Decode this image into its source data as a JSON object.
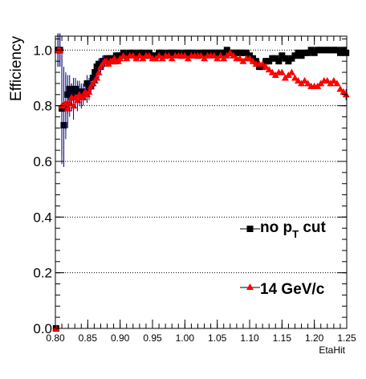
{
  "chart_data": {
    "type": "scatter",
    "title": "",
    "xlabel": "EtaHit",
    "ylabel": "Efficiency",
    "xlim": [
      0.8,
      1.25
    ],
    "ylim": [
      0.0,
      1.05
    ],
    "grid": "horizontal dotted at y ticks",
    "x_ticks": [
      "0.80",
      "0.85",
      "0.90",
      "0.95",
      "1.00",
      "1.05",
      "1.10",
      "1.15",
      "1.20",
      "1.25"
    ],
    "y_ticks": [
      "0.0",
      "0.2",
      "0.4",
      "0.6",
      "0.8",
      "1.0"
    ],
    "legend_position": "bottom-right",
    "legend": [
      {
        "name_main": "no p",
        "name_sub": "T",
        "name_end": " cut",
        "color": "#000000",
        "marker": "square"
      },
      {
        "name_main": "14 GeV/c",
        "color": "#ff0000",
        "marker": "triangle"
      }
    ],
    "series": [
      {
        "color": "#000000",
        "marker": "square",
        "error_color": "#00007a",
        "x": [
          0.801,
          0.804,
          0.807,
          0.81,
          0.813,
          0.816,
          0.819,
          0.822,
          0.825,
          0.828,
          0.831,
          0.834,
          0.837,
          0.84,
          0.843,
          0.846,
          0.849,
          0.852,
          0.855,
          0.858,
          0.861,
          0.864,
          0.867,
          0.87,
          0.873,
          0.876,
          0.879,
          0.882,
          0.885,
          0.888,
          0.891,
          0.894,
          0.897,
          0.9,
          0.905,
          0.91,
          0.915,
          0.92,
          0.925,
          0.93,
          0.935,
          0.94,
          0.945,
          0.95,
          0.955,
          0.96,
          0.965,
          0.97,
          0.975,
          0.98,
          0.985,
          0.99,
          0.995,
          1.0,
          1.005,
          1.01,
          1.015,
          1.02,
          1.025,
          1.03,
          1.035,
          1.04,
          1.045,
          1.05,
          1.055,
          1.06,
          1.065,
          1.07,
          1.075,
          1.08,
          1.085,
          1.09,
          1.095,
          1.1,
          1.105,
          1.11,
          1.115,
          1.12,
          1.125,
          1.13,
          1.135,
          1.14,
          1.145,
          1.15,
          1.155,
          1.16,
          1.165,
          1.17,
          1.175,
          1.18,
          1.185,
          1.19,
          1.195,
          1.2,
          1.205,
          1.21,
          1.215,
          1.22,
          1.225,
          1.23,
          1.235,
          1.24,
          1.245,
          1.249
        ],
        "y": [
          0.0,
          1.0,
          1.0,
          0.79,
          0.73,
          0.8,
          0.84,
          0.86,
          0.83,
          0.85,
          0.86,
          0.85,
          0.85,
          0.84,
          0.85,
          0.85,
          0.88,
          0.87,
          0.87,
          0.9,
          0.92,
          0.94,
          0.95,
          0.94,
          0.96,
          0.96,
          0.97,
          0.96,
          0.97,
          0.97,
          0.96,
          0.98,
          0.97,
          0.98,
          0.99,
          0.98,
          0.99,
          0.99,
          0.98,
          0.99,
          0.99,
          0.98,
          0.99,
          0.98,
          0.98,
          0.99,
          0.99,
          0.98,
          0.99,
          0.99,
          0.99,
          0.99,
          0.98,
          0.99,
          0.99,
          0.99,
          0.99,
          0.98,
          0.99,
          0.99,
          0.99,
          0.99,
          0.99,
          0.99,
          0.99,
          0.99,
          1.0,
          0.99,
          0.99,
          0.99,
          0.99,
          0.99,
          0.99,
          0.98,
          0.97,
          0.96,
          0.94,
          0.94,
          0.96,
          0.96,
          0.97,
          0.97,
          0.96,
          0.98,
          0.97,
          0.96,
          0.97,
          0.98,
          0.99,
          0.98,
          0.99,
          0.99,
          1.0,
          0.99,
          1.0,
          1.0,
          1.0,
          1.0,
          1.0,
          1.0,
          1.0,
          0.99,
          1.0,
          0.99
        ],
        "err": [
          0.0,
          0.06,
          0.06,
          0.2,
          0.15,
          0.12,
          0.07,
          0.05,
          0.05,
          0.05,
          0.04,
          0.04,
          0.04,
          0.04,
          0.03,
          0.03,
          0.03,
          0.03,
          0.02,
          0.02,
          0.02,
          0.02,
          0.02,
          0.02,
          0.02,
          0.02,
          0.01,
          0.01,
          0.01,
          0.01,
          0.01,
          0.01,
          0.01,
          0.01,
          0.01,
          0.01,
          0.01,
          0.01,
          0.01,
          0.01,
          0.01,
          0.01,
          0.01,
          0.01,
          0.01,
          0.01,
          0.01,
          0.01,
          0.01,
          0.01,
          0.01,
          0.01,
          0.01,
          0.01,
          0.01,
          0.01,
          0.01,
          0.01,
          0.01,
          0.01,
          0.01,
          0.01,
          0.01,
          0.01,
          0.01,
          0.01,
          0.01,
          0.01,
          0.01,
          0.01,
          0.01,
          0.01,
          0.01,
          0.01,
          0.01,
          0.01,
          0.01,
          0.01,
          0.01,
          0.01,
          0.01,
          0.01,
          0.01,
          0.01,
          0.01,
          0.01,
          0.01,
          0.01,
          0.01,
          0.01,
          0.01,
          0.01,
          0.01,
          0.01,
          0.01,
          0.01,
          0.01,
          0.01,
          0.01,
          0.01,
          0.01,
          0.01,
          0.01,
          0.01
        ]
      },
      {
        "color": "#ff0000",
        "marker": "triangle",
        "error_color": "#00007a",
        "x": [
          0.801,
          0.804,
          0.807,
          0.81,
          0.813,
          0.816,
          0.819,
          0.822,
          0.825,
          0.828,
          0.831,
          0.834,
          0.837,
          0.84,
          0.843,
          0.846,
          0.849,
          0.852,
          0.855,
          0.858,
          0.861,
          0.864,
          0.867,
          0.87,
          0.873,
          0.876,
          0.879,
          0.882,
          0.885,
          0.888,
          0.891,
          0.894,
          0.897,
          0.9,
          0.905,
          0.91,
          0.915,
          0.92,
          0.925,
          0.93,
          0.935,
          0.94,
          0.945,
          0.95,
          0.955,
          0.96,
          0.965,
          0.97,
          0.975,
          0.98,
          0.985,
          0.99,
          0.995,
          1.0,
          1.005,
          1.01,
          1.015,
          1.02,
          1.025,
          1.03,
          1.035,
          1.04,
          1.045,
          1.05,
          1.055,
          1.06,
          1.065,
          1.07,
          1.075,
          1.08,
          1.085,
          1.09,
          1.095,
          1.1,
          1.105,
          1.11,
          1.115,
          1.12,
          1.125,
          1.13,
          1.135,
          1.14,
          1.145,
          1.15,
          1.155,
          1.16,
          1.165,
          1.17,
          1.175,
          1.18,
          1.185,
          1.19,
          1.195,
          1.2,
          1.205,
          1.21,
          1.215,
          1.22,
          1.225,
          1.23,
          1.235,
          1.24,
          1.245,
          1.249
        ],
        "y": [
          0.0,
          1.0,
          1.0,
          0.8,
          0.8,
          0.81,
          0.79,
          0.81,
          0.83,
          0.8,
          0.83,
          0.82,
          0.84,
          0.83,
          0.83,
          0.85,
          0.84,
          0.85,
          0.87,
          0.88,
          0.89,
          0.9,
          0.92,
          0.94,
          0.95,
          0.96,
          0.96,
          0.95,
          0.96,
          0.96,
          0.97,
          0.96,
          0.96,
          0.97,
          0.98,
          0.97,
          0.98,
          0.98,
          0.97,
          0.98,
          0.97,
          0.98,
          0.98,
          0.97,
          0.97,
          0.98,
          0.97,
          0.98,
          0.98,
          0.97,
          0.98,
          0.98,
          0.98,
          0.98,
          0.97,
          0.98,
          0.98,
          0.98,
          0.98,
          0.97,
          0.98,
          0.98,
          0.98,
          0.97,
          0.98,
          0.97,
          0.98,
          0.99,
          0.98,
          0.97,
          0.97,
          0.96,
          0.97,
          0.97,
          0.96,
          0.95,
          0.95,
          0.95,
          0.94,
          0.93,
          0.92,
          0.91,
          0.92,
          0.92,
          0.9,
          0.91,
          0.92,
          0.9,
          0.89,
          0.88,
          0.89,
          0.88,
          0.87,
          0.87,
          0.87,
          0.88,
          0.89,
          0.89,
          0.88,
          0.89,
          0.88,
          0.86,
          0.85,
          0.84
        ],
        "err": [
          0.0,
          0.06,
          0.06,
          0.18,
          0.14,
          0.1,
          0.07,
          0.05,
          0.05,
          0.05,
          0.04,
          0.04,
          0.04,
          0.04,
          0.03,
          0.03,
          0.03,
          0.03,
          0.02,
          0.02,
          0.02,
          0.02,
          0.02,
          0.02,
          0.02,
          0.02,
          0.01,
          0.01,
          0.01,
          0.01,
          0.01,
          0.01,
          0.01,
          0.01,
          0.01,
          0.01,
          0.01,
          0.01,
          0.01,
          0.01,
          0.01,
          0.01,
          0.01,
          0.01,
          0.01,
          0.01,
          0.01,
          0.01,
          0.01,
          0.01,
          0.01,
          0.01,
          0.01,
          0.01,
          0.01,
          0.01,
          0.01,
          0.01,
          0.01,
          0.01,
          0.01,
          0.01,
          0.01,
          0.01,
          0.01,
          0.01,
          0.01,
          0.01,
          0.01,
          0.01,
          0.01,
          0.01,
          0.01,
          0.01,
          0.01,
          0.01,
          0.01,
          0.01,
          0.01,
          0.01,
          0.01,
          0.01,
          0.01,
          0.01,
          0.01,
          0.01,
          0.01,
          0.01,
          0.01,
          0.01,
          0.01,
          0.01,
          0.01,
          0.01,
          0.01,
          0.01,
          0.01,
          0.01,
          0.01,
          0.01,
          0.01,
          0.01,
          0.01,
          0.02
        ]
      }
    ]
  }
}
